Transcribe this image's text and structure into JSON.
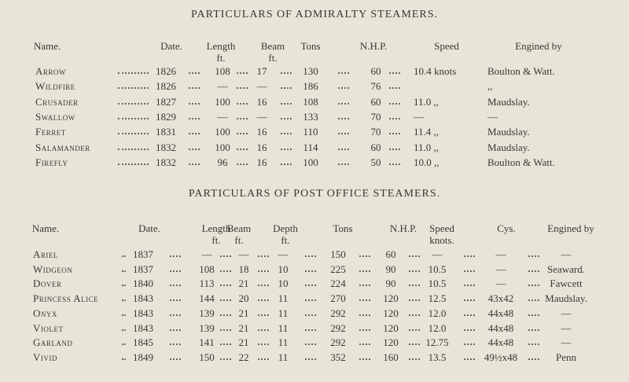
{
  "table1": {
    "title": "PARTICULARS OF ADMIRALTY STEAMERS.",
    "headers": [
      {
        "main": "Name."
      },
      {
        "main": "Date."
      },
      {
        "main": "Length",
        "unit": "ft."
      },
      {
        "main": "Beam",
        "unit": "ft."
      },
      {
        "main": "Tons"
      },
      {
        "main": "N.H.P."
      },
      {
        "main": "Speed"
      },
      {
        "main": "Engined by"
      }
    ],
    "rows": [
      [
        "Arrow",
        "1826",
        "108",
        "17",
        "130",
        "60",
        "10.4 knots",
        "Boulton & Watt."
      ],
      [
        "Wildfire",
        "1826",
        "—",
        "—",
        "186",
        "76",
        null,
        ",,"
      ],
      [
        "Crusader",
        "1827",
        "100",
        "16",
        "108",
        "60",
        "11.0 ,,",
        "Maudslay."
      ],
      [
        "Swallow",
        "1829",
        "—",
        "—",
        "133",
        "70",
        "—",
        "—"
      ],
      [
        "Ferret",
        "1831",
        "100",
        "16",
        "110",
        "70",
        "11.4 ,,",
        "Maudslay."
      ],
      [
        "Salamander",
        "1832",
        "100",
        "16",
        "114",
        "60",
        "11.0 ,,",
        "Maudslay."
      ],
      [
        "Firefly",
        "1832",
        "96",
        "16",
        "100",
        "50",
        "10.0 ,,",
        "Boulton & Watt."
      ]
    ]
  },
  "table2": {
    "title": "PARTICULARS OF POST OFFICE STEAMERS.",
    "headers": [
      {
        "main": "Name."
      },
      {
        "main": "Date."
      },
      {
        "main": "Length",
        "unit": "ft."
      },
      {
        "main": "Beam",
        "unit": "ft."
      },
      {
        "main": "Depth",
        "unit": "ft."
      },
      {
        "main": "Tons"
      },
      {
        "main": "N.H.P."
      },
      {
        "main": "Speed",
        "unit": "knots."
      },
      {
        "main": "Cys."
      },
      {
        "main": "Engined by"
      }
    ],
    "rows": [
      [
        "Ariel",
        "1837",
        "—",
        "—",
        "—",
        "150",
        "60",
        "—",
        "—",
        "—"
      ],
      [
        "Widgeon",
        "1837",
        "108",
        "18",
        "10",
        "225",
        "90",
        "10.5",
        "—",
        "Seaward."
      ],
      [
        "Dover",
        "1840",
        "113",
        "21",
        "10",
        "224",
        "90",
        "10.5",
        "—",
        "Fawcett"
      ],
      [
        "Princess Alice",
        "1843",
        "144",
        "20",
        "11",
        "270",
        "120",
        "12.5",
        "43x42",
        "Maudslay."
      ],
      [
        "Onyx",
        "1843",
        "139",
        "21",
        "11",
        "292",
        "120",
        "12.0",
        "44x48",
        "—"
      ],
      [
        "Violet",
        "1843",
        "139",
        "21",
        "11",
        "292",
        "120",
        "12.0",
        "44x48",
        "—"
      ],
      [
        "Garland",
        "1845",
        "141",
        "21",
        "11",
        "292",
        "120",
        "12.75",
        "44x48",
        "—"
      ],
      [
        "Vivid",
        "1849",
        "150",
        "22",
        "11",
        "352",
        "160",
        "13.5",
        "49½x48",
        "Penn"
      ]
    ]
  }
}
